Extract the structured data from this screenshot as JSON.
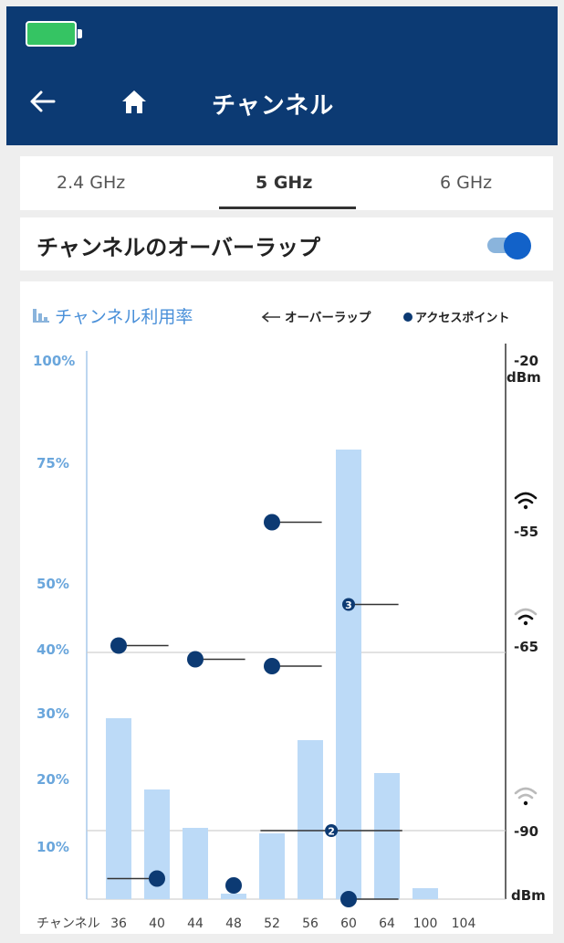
{
  "header": {
    "title": "チャンネル",
    "battery_color": "#35c463",
    "background": "#0c3a73",
    "icons": [
      "battery-icon",
      "back-arrow-icon",
      "home-icon"
    ]
  },
  "tabs": [
    {
      "label": "2.4 GHz",
      "active": false
    },
    {
      "label": "5 GHz",
      "active": true
    },
    {
      "label": "6 GHz",
      "active": false
    }
  ],
  "overlap": {
    "label": "チャンネルのオーバーラップ",
    "enabled": true
  },
  "legend": {
    "title": "チャンネル利用率",
    "overlap": "オーバーラップ",
    "access_point": "アクセスポイント"
  },
  "chart_data": {
    "type": "bar",
    "title": "チャンネル利用率",
    "xlabel": "チャンネル",
    "categories": [
      "36",
      "40",
      "44",
      "48",
      "52",
      "56",
      "60",
      "64",
      "100",
      "104"
    ],
    "values": [
      33,
      20,
      13,
      1,
      12,
      29,
      82,
      23,
      2,
      0
    ],
    "y_left": {
      "ticks": [
        "100%",
        "75%",
        "50%",
        "40%",
        "30%",
        "20%",
        "10%"
      ]
    },
    "y_right": {
      "top": "-20",
      "unit": "dBm",
      "ticks": [
        "-55",
        "-65",
        "-90"
      ],
      "bottom": "dBm"
    },
    "bar_color": "#bcdaf7",
    "ap_color": "#0c3a73",
    "access_points": [
      {
        "channel": "36",
        "dbm": -63,
        "span_channels": 1
      },
      {
        "channel": "40",
        "dbm": -97,
        "span_channels": 1,
        "left": true
      },
      {
        "channel": "44",
        "dbm": -65,
        "span_channels": 1
      },
      {
        "channel": "48",
        "dbm": -98,
        "span_channels": 0
      },
      {
        "channel": "52",
        "dbm": -45,
        "span_channels": 1
      },
      {
        "channel": "52",
        "dbm": -66,
        "span_channels": 1
      },
      {
        "channel": "56",
        "dbm": -90,
        "span_channels": 2,
        "count": "2"
      },
      {
        "channel": "60",
        "dbm": -57,
        "span_channels": 1,
        "count": "3"
      },
      {
        "channel": "60",
        "dbm": -100,
        "span_channels": 1
      }
    ],
    "threshold_lines_dbm": [
      -64,
      -90
    ],
    "grid": false,
    "legend_position": "top-right"
  }
}
